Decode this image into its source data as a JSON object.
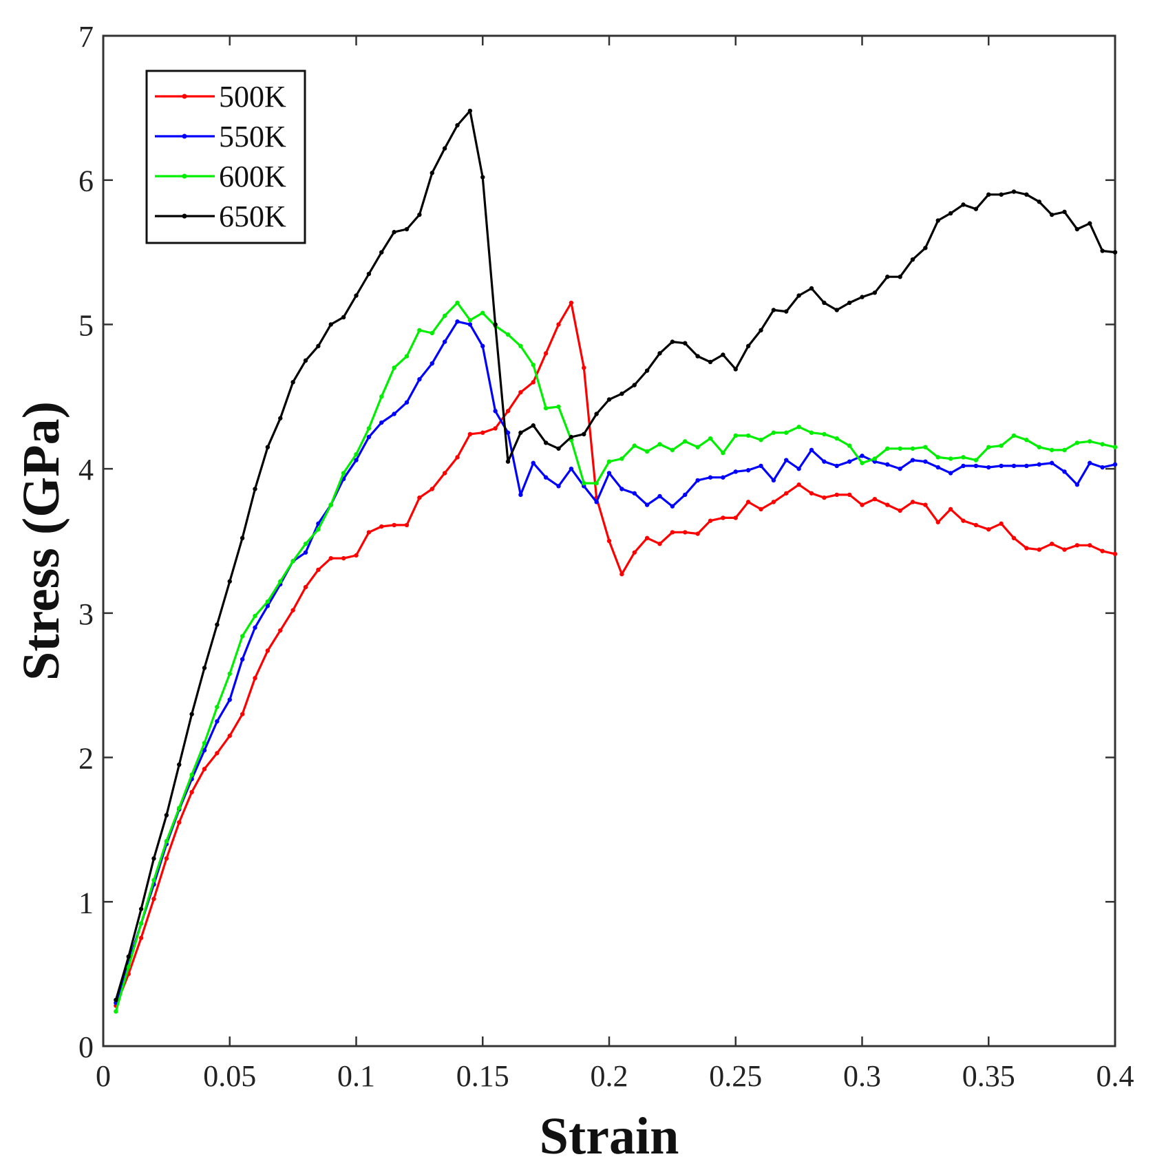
{
  "chart_data": {
    "type": "line",
    "xlabel": "Strain",
    "ylabel": "Stress (GPa)",
    "xlim": [
      0,
      0.4
    ],
    "ylim": [
      0,
      7
    ],
    "grid": false,
    "legend_position": "top-left",
    "x_ticks": [
      0,
      0.05,
      0.1,
      0.15,
      0.2,
      0.25,
      0.3,
      0.35,
      0.4
    ],
    "x_tick_labels": [
      "0",
      "0.05",
      "0.1",
      "0.15",
      "0.2",
      "0.25",
      "0.3",
      "0.35",
      "0.4"
    ],
    "y_ticks": [
      0,
      1,
      2,
      3,
      4,
      5,
      6,
      7
    ],
    "y_tick_labels": [
      "0",
      "1",
      "2",
      "3",
      "4",
      "5",
      "6",
      "7"
    ],
    "series": [
      {
        "name": "500K",
        "color": "#ff0000",
        "x": [
          0.005,
          0.01,
          0.015,
          0.02,
          0.025,
          0.03,
          0.035,
          0.04,
          0.045,
          0.05,
          0.055,
          0.06,
          0.065,
          0.07,
          0.075,
          0.08,
          0.085,
          0.09,
          0.095,
          0.1,
          0.105,
          0.11,
          0.115,
          0.12,
          0.125,
          0.13,
          0.135,
          0.14,
          0.145,
          0.15,
          0.155,
          0.16,
          0.165,
          0.17,
          0.175,
          0.18,
          0.185,
          0.19,
          0.195,
          0.2,
          0.205,
          0.21,
          0.215,
          0.22,
          0.225,
          0.23,
          0.235,
          0.24,
          0.245,
          0.25,
          0.255,
          0.26,
          0.265,
          0.27,
          0.275,
          0.28,
          0.285,
          0.29,
          0.295,
          0.3,
          0.305,
          0.31,
          0.315,
          0.32,
          0.325,
          0.33,
          0.335,
          0.34,
          0.345,
          0.35,
          0.355,
          0.36,
          0.365,
          0.37,
          0.375,
          0.38,
          0.385,
          0.39,
          0.395,
          0.4
        ],
        "values": [
          0.28,
          0.5,
          0.75,
          1.02,
          1.3,
          1.55,
          1.76,
          1.92,
          2.03,
          2.15,
          2.3,
          2.55,
          2.74,
          2.88,
          3.02,
          3.18,
          3.3,
          3.38,
          3.38,
          3.4,
          3.56,
          3.6,
          3.61,
          3.61,
          3.8,
          3.86,
          3.97,
          4.08,
          4.24,
          4.25,
          4.28,
          4.4,
          4.53,
          4.6,
          4.8,
          5.0,
          5.15,
          4.7,
          3.8,
          3.5,
          3.27,
          3.42,
          3.52,
          3.48,
          3.56,
          3.56,
          3.55,
          3.64,
          3.66,
          3.66,
          3.77,
          3.72,
          3.77,
          3.83,
          3.89,
          3.83,
          3.8,
          3.82,
          3.82,
          3.75,
          3.79,
          3.75,
          3.71,
          3.77,
          3.75,
          3.63,
          3.72,
          3.64,
          3.61,
          3.58,
          3.62,
          3.52,
          3.45,
          3.44,
          3.48,
          3.44,
          3.47,
          3.47,
          3.43,
          3.41
        ]
      },
      {
        "name": "550K",
        "color": "#0000ff",
        "x": [
          0.005,
          0.01,
          0.015,
          0.02,
          0.025,
          0.03,
          0.035,
          0.04,
          0.045,
          0.05,
          0.055,
          0.06,
          0.065,
          0.07,
          0.075,
          0.08,
          0.085,
          0.09,
          0.095,
          0.1,
          0.105,
          0.11,
          0.115,
          0.12,
          0.125,
          0.13,
          0.135,
          0.14,
          0.145,
          0.15,
          0.155,
          0.16,
          0.165,
          0.17,
          0.175,
          0.18,
          0.185,
          0.19,
          0.195,
          0.2,
          0.205,
          0.21,
          0.215,
          0.22,
          0.225,
          0.23,
          0.235,
          0.24,
          0.245,
          0.25,
          0.255,
          0.26,
          0.265,
          0.27,
          0.275,
          0.28,
          0.285,
          0.29,
          0.295,
          0.3,
          0.305,
          0.31,
          0.315,
          0.32,
          0.325,
          0.33,
          0.335,
          0.34,
          0.345,
          0.35,
          0.355,
          0.36,
          0.365,
          0.37,
          0.375,
          0.38,
          0.385,
          0.39,
          0.395,
          0.4
        ],
        "values": [
          0.3,
          0.58,
          0.85,
          1.12,
          1.4,
          1.64,
          1.85,
          2.05,
          2.25,
          2.4,
          2.68,
          2.9,
          3.05,
          3.2,
          3.36,
          3.42,
          3.62,
          3.75,
          3.93,
          4.06,
          4.22,
          4.32,
          4.38,
          4.46,
          4.62,
          4.73,
          4.88,
          5.02,
          5.0,
          4.85,
          4.4,
          4.25,
          3.82,
          4.04,
          3.94,
          3.88,
          4.0,
          3.88,
          3.77,
          3.97,
          3.86,
          3.83,
          3.75,
          3.81,
          3.74,
          3.82,
          3.92,
          3.94,
          3.94,
          3.98,
          3.99,
          4.02,
          3.92,
          4.06,
          4.0,
          4.13,
          4.05,
          4.02,
          4.05,
          4.09,
          4.05,
          4.03,
          4.0,
          4.06,
          4.05,
          4.01,
          3.97,
          4.02,
          4.02,
          4.01,
          4.02,
          4.02,
          4.02,
          4.03,
          4.04,
          3.98,
          3.89,
          4.04,
          4.01,
          4.03
        ]
      },
      {
        "name": "600K",
        "color": "#00ee00",
        "x": [
          0.005,
          0.01,
          0.015,
          0.02,
          0.025,
          0.03,
          0.035,
          0.04,
          0.045,
          0.05,
          0.055,
          0.06,
          0.065,
          0.07,
          0.075,
          0.08,
          0.085,
          0.09,
          0.095,
          0.1,
          0.105,
          0.11,
          0.115,
          0.12,
          0.125,
          0.13,
          0.135,
          0.14,
          0.145,
          0.15,
          0.155,
          0.16,
          0.165,
          0.17,
          0.175,
          0.18,
          0.185,
          0.19,
          0.195,
          0.2,
          0.205,
          0.21,
          0.215,
          0.22,
          0.225,
          0.23,
          0.235,
          0.24,
          0.245,
          0.25,
          0.255,
          0.26,
          0.265,
          0.27,
          0.275,
          0.28,
          0.285,
          0.29,
          0.295,
          0.3,
          0.305,
          0.31,
          0.315,
          0.32,
          0.325,
          0.33,
          0.335,
          0.34,
          0.345,
          0.35,
          0.355,
          0.36,
          0.365,
          0.37,
          0.375,
          0.38,
          0.385,
          0.39,
          0.395,
          0.4
        ],
        "values": [
          0.24,
          0.55,
          0.85,
          1.15,
          1.42,
          1.65,
          1.88,
          2.1,
          2.35,
          2.58,
          2.84,
          2.98,
          3.08,
          3.22,
          3.36,
          3.48,
          3.58,
          3.75,
          3.97,
          4.1,
          4.28,
          4.5,
          4.7,
          4.78,
          4.96,
          4.94,
          5.06,
          5.15,
          5.03,
          5.08,
          4.99,
          4.93,
          4.85,
          4.72,
          4.42,
          4.43,
          4.2,
          3.9,
          3.9,
          4.05,
          4.07,
          4.16,
          4.12,
          4.17,
          4.13,
          4.19,
          4.15,
          4.21,
          4.11,
          4.23,
          4.23,
          4.2,
          4.25,
          4.25,
          4.29,
          4.25,
          4.24,
          4.21,
          4.16,
          4.04,
          4.07,
          4.14,
          4.14,
          4.14,
          4.15,
          4.08,
          4.07,
          4.08,
          4.06,
          4.15,
          4.16,
          4.23,
          4.2,
          4.15,
          4.13,
          4.13,
          4.18,
          4.19,
          4.17,
          4.15
        ]
      },
      {
        "name": "650K",
        "color": "#000000",
        "x": [
          0.005,
          0.01,
          0.015,
          0.02,
          0.025,
          0.03,
          0.035,
          0.04,
          0.045,
          0.05,
          0.055,
          0.06,
          0.065,
          0.07,
          0.075,
          0.08,
          0.085,
          0.09,
          0.095,
          0.1,
          0.105,
          0.11,
          0.115,
          0.12,
          0.125,
          0.13,
          0.135,
          0.14,
          0.145,
          0.15,
          0.155,
          0.16,
          0.165,
          0.17,
          0.175,
          0.18,
          0.185,
          0.19,
          0.195,
          0.2,
          0.205,
          0.21,
          0.215,
          0.22,
          0.225,
          0.23,
          0.235,
          0.24,
          0.245,
          0.25,
          0.255,
          0.26,
          0.265,
          0.27,
          0.275,
          0.28,
          0.285,
          0.29,
          0.295,
          0.3,
          0.305,
          0.31,
          0.315,
          0.32,
          0.325,
          0.33,
          0.335,
          0.34,
          0.345,
          0.35,
          0.355,
          0.36,
          0.365,
          0.37,
          0.375,
          0.38,
          0.385,
          0.39,
          0.395,
          0.4
        ],
        "values": [
          0.32,
          0.62,
          0.95,
          1.3,
          1.6,
          1.95,
          2.3,
          2.62,
          2.92,
          3.22,
          3.52,
          3.86,
          4.15,
          4.35,
          4.6,
          4.75,
          4.85,
          5.0,
          5.05,
          5.2,
          5.35,
          5.5,
          5.64,
          5.66,
          5.76,
          6.05,
          6.22,
          6.38,
          6.48,
          6.02,
          5.0,
          4.05,
          4.25,
          4.3,
          4.18,
          4.14,
          4.22,
          4.24,
          4.38,
          4.48,
          4.52,
          4.58,
          4.68,
          4.8,
          4.88,
          4.87,
          4.78,
          4.74,
          4.79,
          4.69,
          4.85,
          4.96,
          5.1,
          5.09,
          5.2,
          5.25,
          5.15,
          5.1,
          5.15,
          5.19,
          5.22,
          5.33,
          5.33,
          5.45,
          5.53,
          5.72,
          5.77,
          5.83,
          5.8,
          5.9,
          5.9,
          5.92,
          5.9,
          5.85,
          5.76,
          5.78,
          5.66,
          5.7,
          5.51,
          5.5
        ]
      }
    ]
  }
}
